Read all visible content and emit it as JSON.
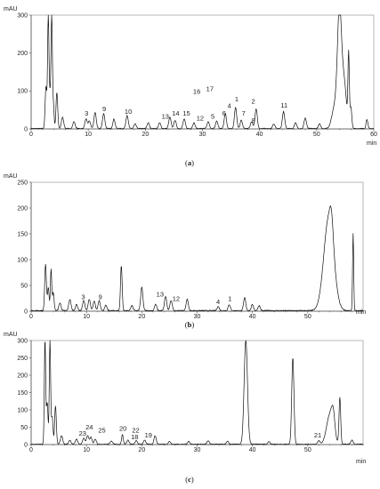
{
  "chart_data": [
    {
      "type": "line",
      "panel_label": "a",
      "y_unit": "mAU",
      "x_unit": "min",
      "xlim": [
        0,
        60
      ],
      "ylim": [
        0,
        300
      ],
      "x_ticks": [
        0,
        10,
        20,
        30,
        40,
        50,
        60
      ],
      "y_ticks": [
        0,
        100,
        200,
        300
      ],
      "peaks": [
        {
          "rt": 2.6,
          "height": 110,
          "width": 0.15
        },
        {
          "rt": 3.0,
          "height": 300,
          "width": 0.12
        },
        {
          "rt": 3.3,
          "height": 80,
          "width": 0.12
        },
        {
          "rt": 3.6,
          "height": 300,
          "width": 0.12
        },
        {
          "rt": 3.9,
          "height": 60,
          "width": 0.12
        },
        {
          "rt": 4.5,
          "height": 95,
          "width": 0.15
        },
        {
          "rt": 5.5,
          "height": 30,
          "width": 0.2
        },
        {
          "rt": 7.5,
          "height": 18,
          "width": 0.2
        },
        {
          "rt": 9.6,
          "height": 25,
          "width": 0.2
        },
        {
          "rt": 10.2,
          "height": 20,
          "width": 0.2
        },
        {
          "rt": 11.2,
          "height": 42,
          "width": 0.2
        },
        {
          "rt": 12.7,
          "height": 40,
          "width": 0.2
        },
        {
          "rt": 14.5,
          "height": 25,
          "width": 0.2
        },
        {
          "rt": 16.8,
          "height": 35,
          "width": 0.2
        },
        {
          "rt": 18.2,
          "height": 12,
          "width": 0.2
        },
        {
          "rt": 20.5,
          "height": 15,
          "width": 0.2
        },
        {
          "rt": 22.5,
          "height": 15,
          "width": 0.2
        },
        {
          "rt": 24.3,
          "height": 30,
          "width": 0.2
        },
        {
          "rt": 25.2,
          "height": 22,
          "width": 0.2
        },
        {
          "rt": 26.8,
          "height": 25,
          "width": 0.2
        },
        {
          "rt": 28.5,
          "height": 15,
          "width": 0.2
        },
        {
          "rt": 31.0,
          "height": 18,
          "width": 0.2
        },
        {
          "rt": 32.5,
          "height": 20,
          "width": 0.2
        },
        {
          "rt": 34.0,
          "height": 40,
          "width": 0.2
        },
        {
          "rt": 35.8,
          "height": 55,
          "width": 0.2
        },
        {
          "rt": 36.8,
          "height": 22,
          "width": 0.2
        },
        {
          "rt": 38.6,
          "height": 18,
          "width": 0.2
        },
        {
          "rt": 39.4,
          "height": 52,
          "width": 0.2
        },
        {
          "rt": 42.5,
          "height": 12,
          "width": 0.2
        },
        {
          "rt": 44.2,
          "height": 45,
          "width": 0.2
        },
        {
          "rt": 46.3,
          "height": 15,
          "width": 0.2
        },
        {
          "rt": 48.0,
          "height": 28,
          "width": 0.2
        },
        {
          "rt": 50.5,
          "height": 12,
          "width": 0.2
        },
        {
          "rt": 53.2,
          "height": 60,
          "width": 0.5
        },
        {
          "rt": 54.0,
          "height": 300,
          "width": 0.35
        },
        {
          "rt": 54.8,
          "height": 120,
          "width": 0.4
        },
        {
          "rt": 55.6,
          "height": 190,
          "width": 0.12
        },
        {
          "rt": 56.0,
          "height": 55,
          "width": 0.15
        },
        {
          "rt": 58.8,
          "height": 25,
          "width": 0.15
        }
      ],
      "annotations": [
        {
          "text": "3",
          "x": 9.7,
          "y": 30
        },
        {
          "text": "9",
          "x": 12.8,
          "y": 42
        },
        {
          "text": "10",
          "x": 17.0,
          "y": 35
        },
        {
          "text": "13",
          "x": 23.5,
          "y": 22
        },
        {
          "text": "14",
          "x": 25.3,
          "y": 30
        },
        {
          "text": "15",
          "x": 27.2,
          "y": 30
        },
        {
          "text": "16",
          "x": 29.0,
          "y": 88
        },
        {
          "text": "17",
          "x": 31.3,
          "y": 95
        },
        {
          "text": "12",
          "x": 29.6,
          "y": 18
        },
        {
          "text": "5",
          "x": 31.8,
          "y": 22
        },
        {
          "text": "6",
          "x": 33.8,
          "y": 30
        },
        {
          "text": "4",
          "x": 34.7,
          "y": 50
        },
        {
          "text": "1",
          "x": 36.0,
          "y": 68
        },
        {
          "text": "7",
          "x": 37.2,
          "y": 30
        },
        {
          "text": "8",
          "x": 38.9,
          "y": 12
        },
        {
          "text": "2",
          "x": 38.9,
          "y": 62
        },
        {
          "text": "11",
          "x": 44.3,
          "y": 52
        }
      ]
    },
    {
      "type": "line",
      "panel_label": "b",
      "y_unit": "mAU",
      "x_unit": "min",
      "xlim": [
        0,
        60
      ],
      "ylim": [
        0,
        250
      ],
      "x_ticks": [
        0,
        10,
        20,
        30,
        40,
        50
      ],
      "y_ticks": [
        0,
        50,
        100,
        150,
        200,
        250
      ],
      "peaks": [
        {
          "rt": 2.6,
          "height": 90,
          "width": 0.15
        },
        {
          "rt": 3.1,
          "height": 45,
          "width": 0.15
        },
        {
          "rt": 3.6,
          "height": 80,
          "width": 0.12
        },
        {
          "rt": 4.0,
          "height": 35,
          "width": 0.15
        },
        {
          "rt": 5.2,
          "height": 15,
          "width": 0.2
        },
        {
          "rt": 7.0,
          "height": 22,
          "width": 0.2
        },
        {
          "rt": 8.2,
          "height": 12,
          "width": 0.2
        },
        {
          "rt": 9.5,
          "height": 20,
          "width": 0.2
        },
        {
          "rt": 10.5,
          "height": 22,
          "width": 0.2
        },
        {
          "rt": 11.4,
          "height": 18,
          "width": 0.2
        },
        {
          "rt": 12.3,
          "height": 20,
          "width": 0.2
        },
        {
          "rt": 13.5,
          "height": 10,
          "width": 0.2
        },
        {
          "rt": 16.3,
          "height": 88,
          "width": 0.15
        },
        {
          "rt": 18.2,
          "height": 10,
          "width": 0.2
        },
        {
          "rt": 20.0,
          "height": 45,
          "width": 0.2
        },
        {
          "rt": 22.5,
          "height": 12,
          "width": 0.2
        },
        {
          "rt": 24.3,
          "height": 28,
          "width": 0.2
        },
        {
          "rt": 25.3,
          "height": 20,
          "width": 0.2
        },
        {
          "rt": 28.2,
          "height": 22,
          "width": 0.2
        },
        {
          "rt": 33.8,
          "height": 8,
          "width": 0.2
        },
        {
          "rt": 35.8,
          "height": 12,
          "width": 0.2
        },
        {
          "rt": 38.6,
          "height": 25,
          "width": 0.2
        },
        {
          "rt": 40.0,
          "height": 12,
          "width": 0.2
        },
        {
          "rt": 41.2,
          "height": 10,
          "width": 0.2
        },
        {
          "rt": 53.8,
          "height": 180,
          "width": 0.9
        },
        {
          "rt": 54.3,
          "height": 40,
          "width": 0.3
        },
        {
          "rt": 58.2,
          "height": 150,
          "width": 0.1
        }
      ],
      "annotations": [
        {
          "text": "3",
          "x": 9.4,
          "y": 20
        },
        {
          "text": "9",
          "x": 12.5,
          "y": 20
        },
        {
          "text": "13",
          "x": 23.3,
          "y": 25
        },
        {
          "text": "12",
          "x": 26.2,
          "y": 16
        },
        {
          "text": "4",
          "x": 33.8,
          "y": 10
        },
        {
          "text": "1",
          "x": 35.9,
          "y": 16
        }
      ]
    },
    {
      "type": "line",
      "panel_label": "c",
      "y_unit": "mAU",
      "x_unit": "min",
      "xlim": [
        0,
        60
      ],
      "ylim": [
        0,
        300
      ],
      "x_ticks": [
        0,
        10,
        20,
        30,
        40,
        50
      ],
      "y_ticks": [
        0,
        50,
        100,
        150,
        200,
        250,
        300
      ],
      "peaks": [
        {
          "rt": 2.5,
          "height": 300,
          "width": 0.12
        },
        {
          "rt": 2.9,
          "height": 120,
          "width": 0.15
        },
        {
          "rt": 3.4,
          "height": 300,
          "width": 0.12
        },
        {
          "rt": 3.8,
          "height": 80,
          "width": 0.15
        },
        {
          "rt": 4.4,
          "height": 110,
          "width": 0.15
        },
        {
          "rt": 5.5,
          "height": 25,
          "width": 0.2
        },
        {
          "rt": 7.0,
          "height": 12,
          "width": 0.2
        },
        {
          "rt": 8.2,
          "height": 15,
          "width": 0.2
        },
        {
          "rt": 9.5,
          "height": 18,
          "width": 0.2
        },
        {
          "rt": 10.2,
          "height": 25,
          "width": 0.2
        },
        {
          "rt": 10.8,
          "height": 20,
          "width": 0.2
        },
        {
          "rt": 11.6,
          "height": 15,
          "width": 0.2
        },
        {
          "rt": 14.5,
          "height": 10,
          "width": 0.2
        },
        {
          "rt": 16.5,
          "height": 28,
          "width": 0.15
        },
        {
          "rt": 17.5,
          "height": 12,
          "width": 0.2
        },
        {
          "rt": 19.0,
          "height": 10,
          "width": 0.2
        },
        {
          "rt": 20.5,
          "height": 12,
          "width": 0.2
        },
        {
          "rt": 22.4,
          "height": 25,
          "width": 0.2
        },
        {
          "rt": 25.0,
          "height": 8,
          "width": 0.2
        },
        {
          "rt": 28.5,
          "height": 8,
          "width": 0.2
        },
        {
          "rt": 32.0,
          "height": 10,
          "width": 0.2
        },
        {
          "rt": 35.5,
          "height": 8,
          "width": 0.2
        },
        {
          "rt": 38.8,
          "height": 300,
          "width": 0.3
        },
        {
          "rt": 43.0,
          "height": 8,
          "width": 0.2
        },
        {
          "rt": 47.3,
          "height": 250,
          "width": 0.2
        },
        {
          "rt": 52.0,
          "height": 10,
          "width": 0.2
        },
        {
          "rt": 54.0,
          "height": 85,
          "width": 0.6
        },
        {
          "rt": 54.6,
          "height": 55,
          "width": 0.3
        },
        {
          "rt": 55.8,
          "height": 135,
          "width": 0.15
        },
        {
          "rt": 58.0,
          "height": 12,
          "width": 0.2
        }
      ],
      "annotations": [
        {
          "text": "23",
          "x": 9.3,
          "y": 20
        },
        {
          "text": "24",
          "x": 10.5,
          "y": 38
        },
        {
          "text": "25",
          "x": 12.8,
          "y": 30
        },
        {
          "text": "20",
          "x": 16.6,
          "y": 35
        },
        {
          "text": "22",
          "x": 18.9,
          "y": 30
        },
        {
          "text": "18",
          "x": 18.7,
          "y": 10
        },
        {
          "text": "19",
          "x": 21.2,
          "y": 15
        },
        {
          "text": "21",
          "x": 51.8,
          "y": 15
        }
      ]
    }
  ]
}
